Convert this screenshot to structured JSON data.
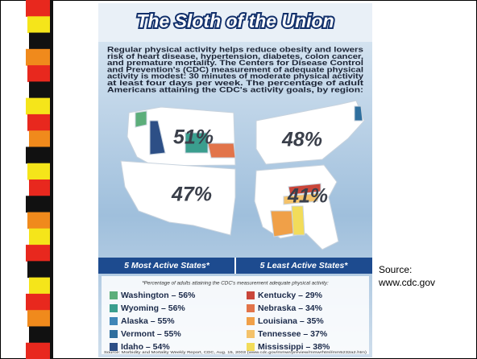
{
  "header": {
    "title": "The Sloth of the Union"
  },
  "intro": [
    "Regular physical activity helps reduce obesity and lowers",
    "risk of heart disease, hypertension, diabetes, colon cancer,",
    "and premature mortality. The Centers for Disease Control",
    "and Prevention's (CDC) measurement of adequate physical",
    "activity is modest: 30 minutes of moderate physical activity",
    "at least four days per week. The percentage of adult",
    "Americans attaining the CDC's activity goals, by region:"
  ],
  "regions": [
    "51%",
    "48%",
    "47%",
    "41%"
  ],
  "most_active": {
    "heading": "5 Most Active States*",
    "items": [
      {
        "text": "Washington – 56%",
        "color": "#5cae7a"
      },
      {
        "text": "Wyoming – 56%",
        "color": "#3a9e8e"
      },
      {
        "text": "Alaska – 55%",
        "color": "#3f86b8"
      },
      {
        "text": "Vermont – 55%",
        "color": "#2f6f9e"
      },
      {
        "text": "Idaho – 54%",
        "color": "#2d4f86"
      }
    ]
  },
  "least_active": {
    "heading": "5 Least Active States*",
    "items": [
      {
        "text": "Kentucky – 29%",
        "color": "#c9463a"
      },
      {
        "text": "Nebraska – 34%",
        "color": "#e2744a"
      },
      {
        "text": "Louisiana – 35%",
        "color": "#f0a048"
      },
      {
        "text": "Tennessee – 37%",
        "color": "#f4c26a"
      },
      {
        "text": "Mississippi – 38%",
        "color": "#f2dc5a"
      }
    ]
  },
  "footnote": "*Percentage of adults attaining the CDC's measurement adequate physical activity:",
  "source_line": "Source: Morbidity and Mortality Weekly Report, CDC, Aug. 15, 2003 (www.cdc.gov/mmwr/preview/mmwrhtml/mm5232a2.htm)",
  "side_source": [
    "Source:",
    "www.cdc.gov"
  ]
}
